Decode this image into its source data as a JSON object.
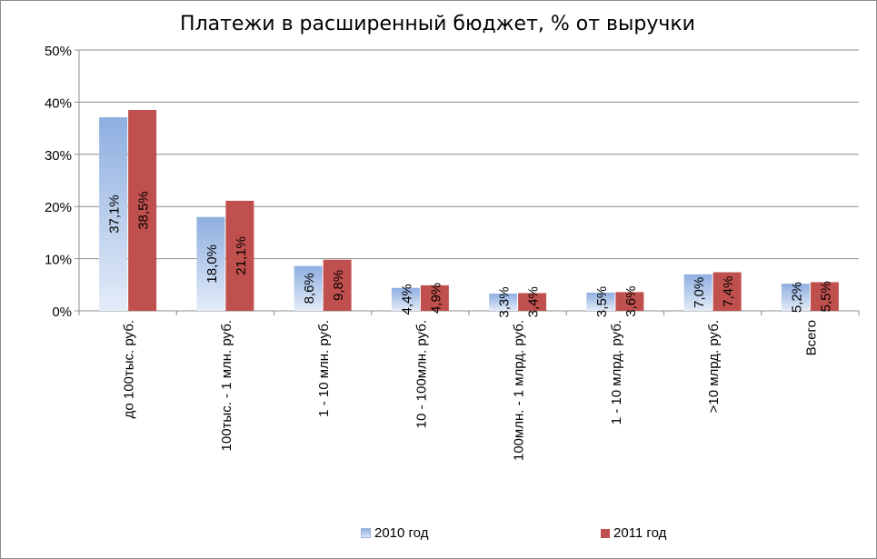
{
  "chart_data": {
    "type": "bar",
    "title": "Платежи в расширенный бюджет, % от выручки",
    "categories": [
      "до 100тыс. руб.",
      "100тыс. - 1 млн. руб.",
      "1 - 10 млн. руб.",
      "10 - 100млн. руб.",
      "100млн. - 1 млрд. руб.",
      "1 - 10 млрд. руб.",
      ">10 млрд. руб.",
      "Всего"
    ],
    "series": [
      {
        "name": "2010 год",
        "values": [
          37.1,
          18.0,
          8.6,
          4.4,
          3.3,
          3.5,
          7.0,
          5.2
        ],
        "labels": [
          "37,1%",
          "18,0%",
          "8,6%",
          "4,4%",
          "3,3%",
          "3,5%",
          "7,0%",
          "5,2%"
        ],
        "color": "#8eaee0"
      },
      {
        "name": "2011 год",
        "values": [
          38.5,
          21.1,
          9.8,
          4.9,
          3.4,
          3.6,
          7.4,
          5.5
        ],
        "labels": [
          "38,5%",
          "21,1%",
          "9,8%",
          "4,9%",
          "3,4%",
          "3,6%",
          "7,4%",
          "5,5%"
        ],
        "color": "#c0504d"
      }
    ],
    "yticks": [
      "0%",
      "10%",
      "20%",
      "30%",
      "40%",
      "50%"
    ],
    "ylim": [
      0,
      50
    ],
    "grid": true,
    "legend": "bottom"
  }
}
